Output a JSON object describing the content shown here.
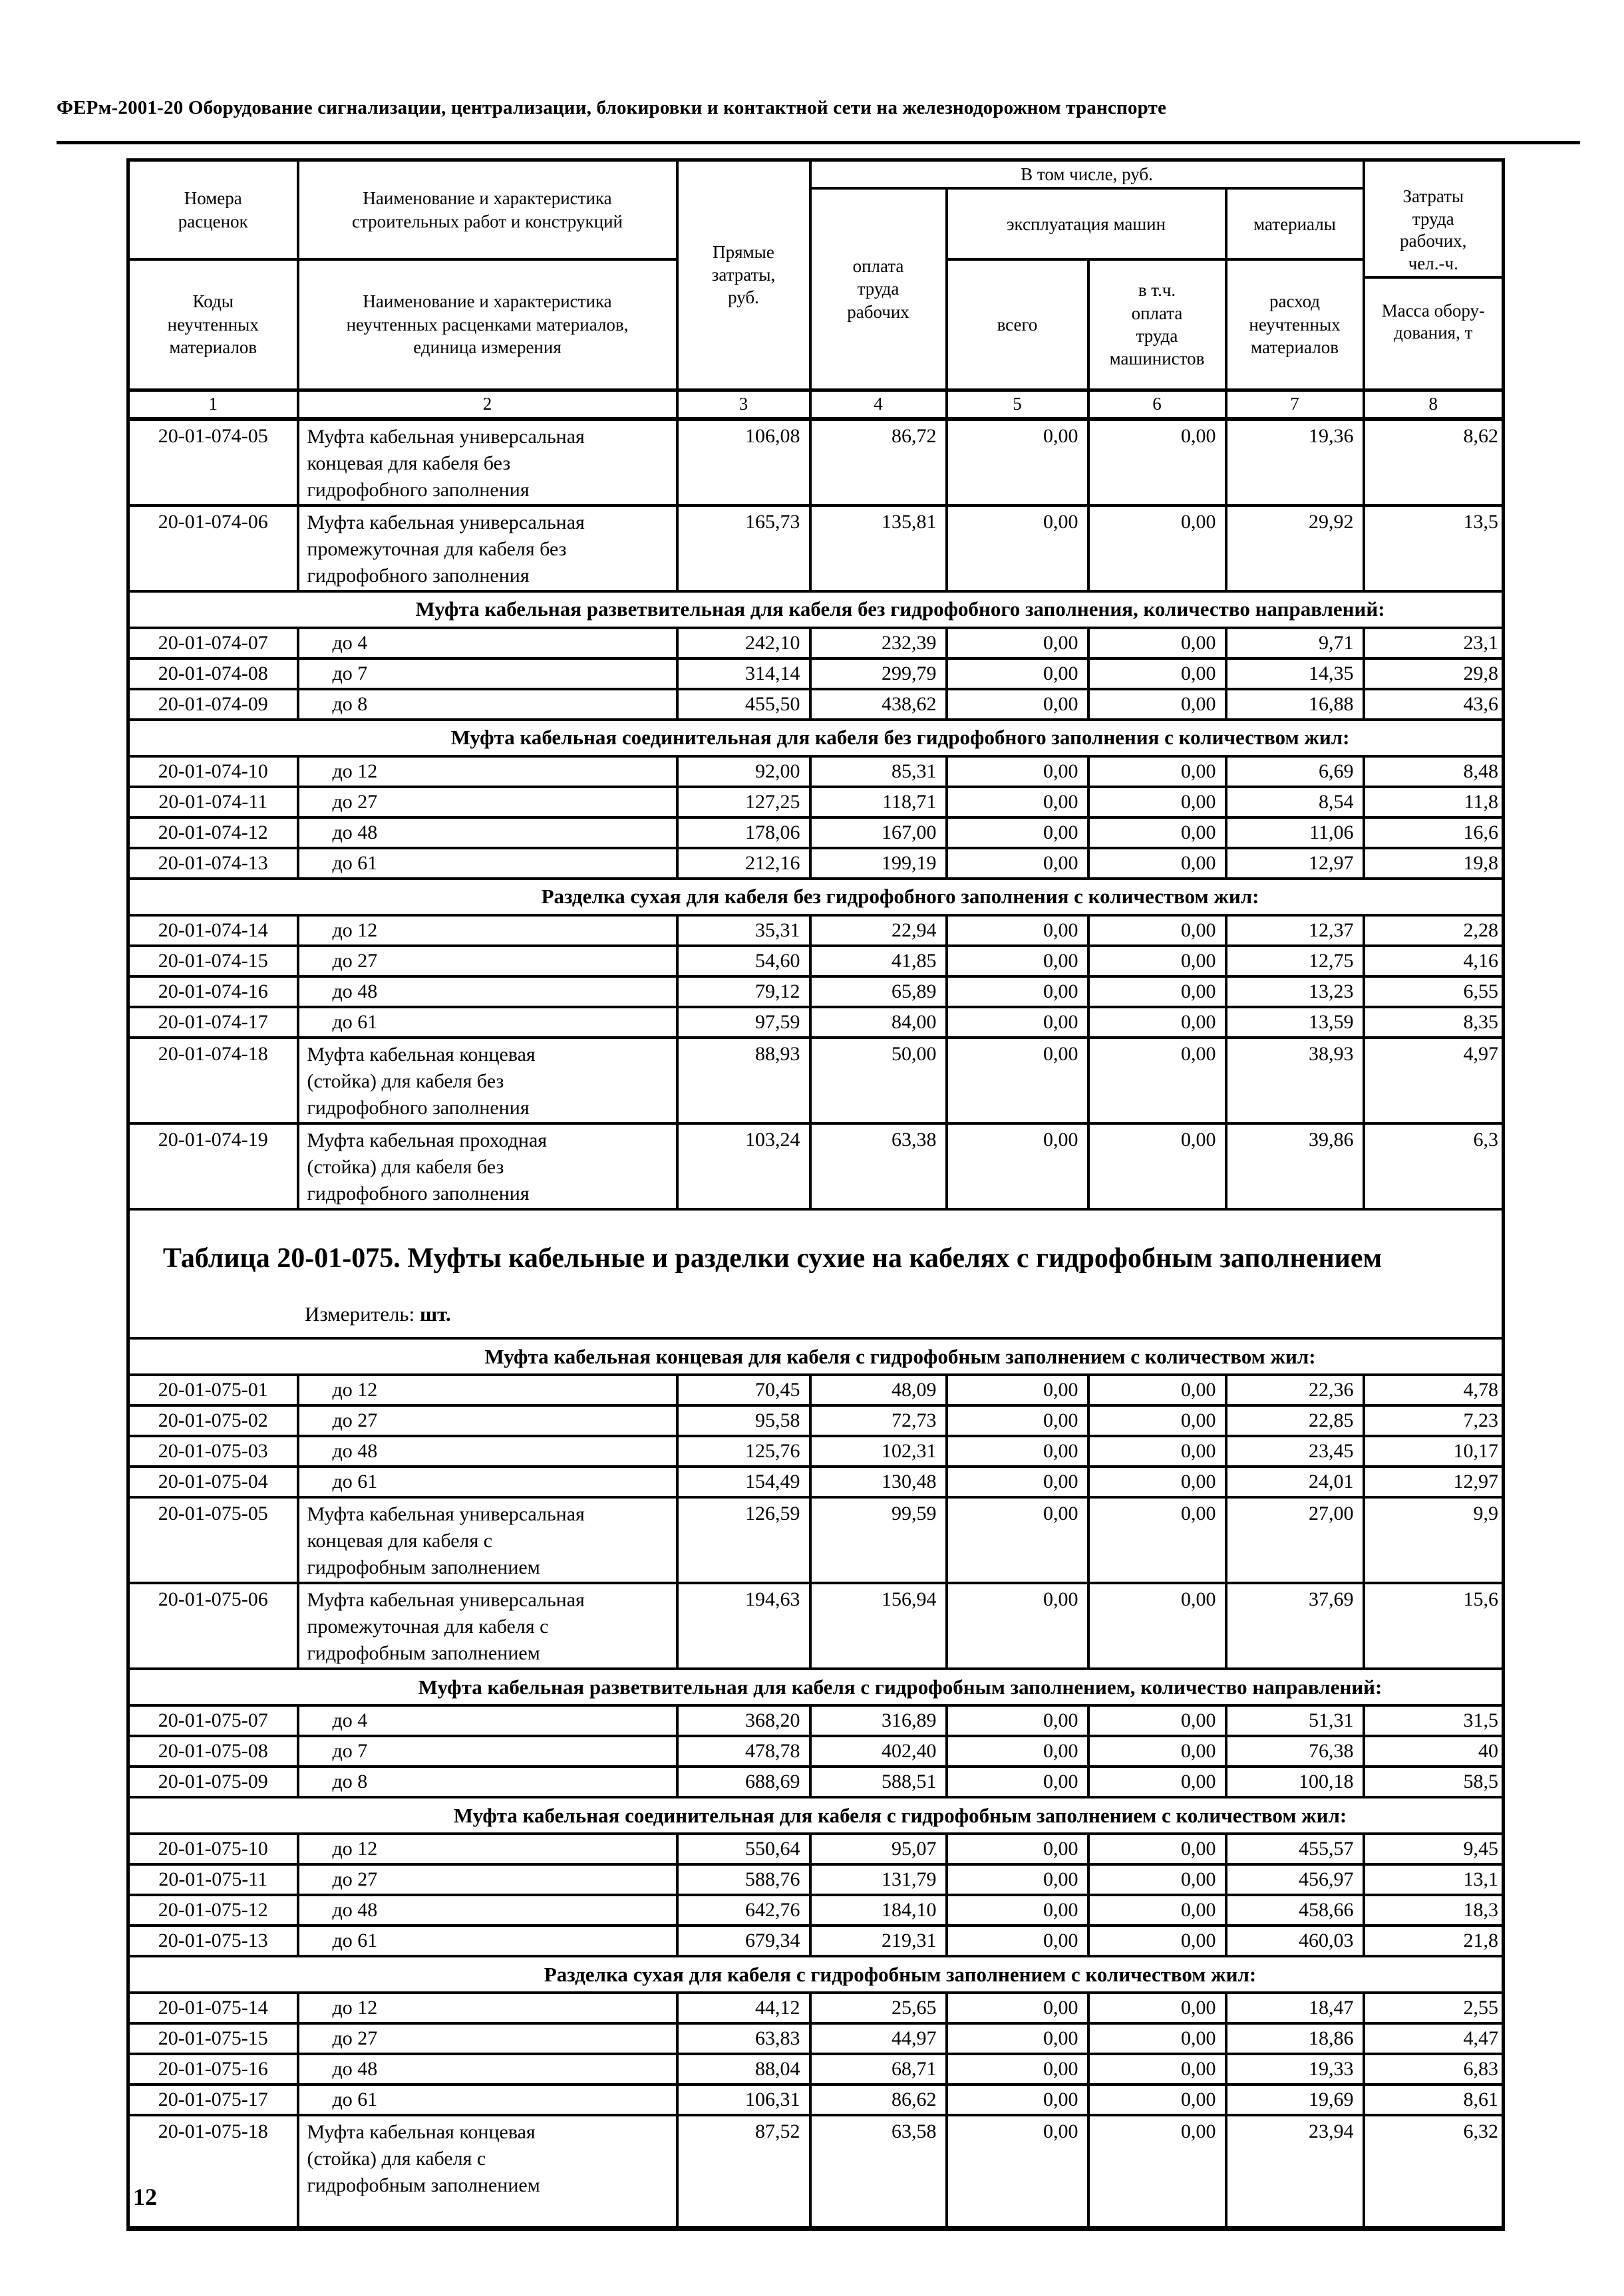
{
  "page": {
    "header_title": "ФЕРм-2001-20 Оборудование сигнализации, централизации, блокировки и контактной сети на железнодорожном транспорте",
    "page_number": "12"
  },
  "table_header": {
    "rate_numbers": "Номера\nрасценок",
    "work_name": "Наименование и характеристика\nстроительных работ и конструкций",
    "material_codes": "Коды\nнеучтенных\nматериалов",
    "material_name": "Наименование и характеристика\nнеучтенных расценками материалов,\nединица измерения",
    "direct_costs": "Прямые\nзатраты,\nруб.",
    "including": "В том числе, руб.",
    "workers_pay": "оплата\nтруда\nрабочих",
    "machines": "эксплуатация машин",
    "machines_total": "всего",
    "machinists_pay": "в т.ч.\nоплата\nтруда\nмашинистов",
    "materials": "материалы",
    "materials_expense": "расход\nнеучтенных\nматериалов",
    "labor_costs": "Затраты\nтруда\nрабочих,\nчел.-ч.",
    "equipment_mass": "Масса обору-\nдования, т",
    "column_numbers": [
      "1",
      "2",
      "3",
      "4",
      "5",
      "6",
      "7",
      "8"
    ]
  },
  "table_074": {
    "rows": [
      {
        "type": "item",
        "code": "20-01-074-05",
        "name": "Муфта кабельная универсальная\nконцевая для кабеля без\nгидрофобного заполнения",
        "values": [
          "106,08",
          "86,72",
          "0,00",
          "0,00",
          "19,36",
          "8,62"
        ]
      },
      {
        "type": "item",
        "code": "20-01-074-06",
        "name": "Муфта кабельная универсальная\nпромежуточная для кабеля без\nгидрофобного заполнения",
        "values": [
          "165,73",
          "135,81",
          "0,00",
          "0,00",
          "29,92",
          "13,5"
        ]
      },
      {
        "type": "section",
        "text": "Муфта кабельная разветвительная для кабеля без гидрофобного заполнения, количество направлений:"
      },
      {
        "type": "item",
        "code": "20-01-074-07",
        "name": "до 4",
        "values": [
          "242,10",
          "232,39",
          "0,00",
          "0,00",
          "9,71",
          "23,1"
        ]
      },
      {
        "type": "item",
        "code": "20-01-074-08",
        "name": "до 7",
        "values": [
          "314,14",
          "299,79",
          "0,00",
          "0,00",
          "14,35",
          "29,8"
        ]
      },
      {
        "type": "item",
        "code": "20-01-074-09",
        "name": "до 8",
        "values": [
          "455,50",
          "438,62",
          "0,00",
          "0,00",
          "16,88",
          "43,6"
        ]
      },
      {
        "type": "section",
        "text": "Муфта кабельная соединительная для кабеля без гидрофобного заполнения с количеством жил:"
      },
      {
        "type": "item",
        "code": "20-01-074-10",
        "name": "до 12",
        "values": [
          "92,00",
          "85,31",
          "0,00",
          "0,00",
          "6,69",
          "8,48"
        ]
      },
      {
        "type": "item",
        "code": "20-01-074-11",
        "name": "до 27",
        "values": [
          "127,25",
          "118,71",
          "0,00",
          "0,00",
          "8,54",
          "11,8"
        ]
      },
      {
        "type": "item",
        "code": "20-01-074-12",
        "name": "до 48",
        "values": [
          "178,06",
          "167,00",
          "0,00",
          "0,00",
          "11,06",
          "16,6"
        ]
      },
      {
        "type": "item",
        "code": "20-01-074-13",
        "name": "до 61",
        "values": [
          "212,16",
          "199,19",
          "0,00",
          "0,00",
          "12,97",
          "19,8"
        ]
      },
      {
        "type": "section",
        "text": "Разделка сухая для кабеля без гидрофобного заполнения с количеством жил:"
      },
      {
        "type": "item",
        "code": "20-01-074-14",
        "name": "до 12",
        "values": [
          "35,31",
          "22,94",
          "0,00",
          "0,00",
          "12,37",
          "2,28"
        ]
      },
      {
        "type": "item",
        "code": "20-01-074-15",
        "name": "до 27",
        "values": [
          "54,60",
          "41,85",
          "0,00",
          "0,00",
          "12,75",
          "4,16"
        ]
      },
      {
        "type": "item",
        "code": "20-01-074-16",
        "name": "до 48",
        "values": [
          "79,12",
          "65,89",
          "0,00",
          "0,00",
          "13,23",
          "6,55"
        ]
      },
      {
        "type": "item",
        "code": "20-01-074-17",
        "name": "до 61",
        "values": [
          "97,59",
          "84,00",
          "0,00",
          "0,00",
          "13,59",
          "8,35"
        ]
      },
      {
        "type": "item",
        "code": "20-01-074-18",
        "name": "Муфта кабельная концевая\n(стойка) для кабеля без\nгидрофобного заполнения",
        "values": [
          "88,93",
          "50,00",
          "0,00",
          "0,00",
          "38,93",
          "4,97"
        ]
      },
      {
        "type": "item",
        "code": "20-01-074-19",
        "name": "Муфта кабельная проходная\n(стойка) для кабеля без\nгидрофобного заполнения",
        "values": [
          "103,24",
          "63,38",
          "0,00",
          "0,00",
          "39,86",
          "6,3"
        ]
      }
    ]
  },
  "table_075": {
    "title": "Таблица 20-01-075. Муфты кабельные и разделки сухие на кабелях с гидрофобным заполнением",
    "measurer_label": "Измеритель:",
    "measurer_value": "шт.",
    "rows": [
      {
        "type": "section",
        "text": "Муфта кабельная концевая для кабеля с гидрофобным заполнением с количеством жил:"
      },
      {
        "type": "item",
        "code": "20-01-075-01",
        "name": "до 12",
        "values": [
          "70,45",
          "48,09",
          "0,00",
          "0,00",
          "22,36",
          "4,78"
        ]
      },
      {
        "type": "item",
        "code": "20-01-075-02",
        "name": "до 27",
        "values": [
          "95,58",
          "72,73",
          "0,00",
          "0,00",
          "22,85",
          "7,23"
        ]
      },
      {
        "type": "item",
        "code": "20-01-075-03",
        "name": "до 48",
        "values": [
          "125,76",
          "102,31",
          "0,00",
          "0,00",
          "23,45",
          "10,17"
        ]
      },
      {
        "type": "item",
        "code": "20-01-075-04",
        "name": "до 61",
        "values": [
          "154,49",
          "130,48",
          "0,00",
          "0,00",
          "24,01",
          "12,97"
        ]
      },
      {
        "type": "item",
        "code": "20-01-075-05",
        "name": "Муфта кабельная универсальная\nконцевая для кабеля с\nгидрофобным заполнением",
        "values": [
          "126,59",
          "99,59",
          "0,00",
          "0,00",
          "27,00",
          "9,9"
        ]
      },
      {
        "type": "item",
        "code": "20-01-075-06",
        "name": "Муфта кабельная универсальная\nпромежуточная для кабеля с\nгидрофобным заполнением",
        "values": [
          "194,63",
          "156,94",
          "0,00",
          "0,00",
          "37,69",
          "15,6"
        ]
      },
      {
        "type": "section",
        "text": "Муфта кабельная разветвительная для кабеля с гидрофобным заполнением, количество направлений:"
      },
      {
        "type": "item",
        "code": "20-01-075-07",
        "name": "до 4",
        "values": [
          "368,20",
          "316,89",
          "0,00",
          "0,00",
          "51,31",
          "31,5"
        ]
      },
      {
        "type": "item",
        "code": "20-01-075-08",
        "name": "до 7",
        "values": [
          "478,78",
          "402,40",
          "0,00",
          "0,00",
          "76,38",
          "40"
        ]
      },
      {
        "type": "item",
        "code": "20-01-075-09",
        "name": "до 8",
        "values": [
          "688,69",
          "588,51",
          "0,00",
          "0,00",
          "100,18",
          "58,5"
        ]
      },
      {
        "type": "section",
        "text": "Муфта кабельная соединительная для кабеля с гидрофобным заполнением с количеством жил:"
      },
      {
        "type": "item",
        "code": "20-01-075-10",
        "name": "до 12",
        "values": [
          "550,64",
          "95,07",
          "0,00",
          "0,00",
          "455,57",
          "9,45"
        ]
      },
      {
        "type": "item",
        "code": "20-01-075-11",
        "name": "до 27",
        "values": [
          "588,76",
          "131,79",
          "0,00",
          "0,00",
          "456,97",
          "13,1"
        ]
      },
      {
        "type": "item",
        "code": "20-01-075-12",
        "name": "до 48",
        "values": [
          "642,76",
          "184,10",
          "0,00",
          "0,00",
          "458,66",
          "18,3"
        ]
      },
      {
        "type": "item",
        "code": "20-01-075-13",
        "name": "до 61",
        "values": [
          "679,34",
          "219,31",
          "0,00",
          "0,00",
          "460,03",
          "21,8"
        ]
      },
      {
        "type": "section",
        "text": "Разделка сухая для кабеля с гидрофобным заполнением с количеством жил:"
      },
      {
        "type": "item",
        "code": "20-01-075-14",
        "name": "до 12",
        "values": [
          "44,12",
          "25,65",
          "0,00",
          "0,00",
          "18,47",
          "2,55"
        ]
      },
      {
        "type": "item",
        "code": "20-01-075-15",
        "name": "до 27",
        "values": [
          "63,83",
          "44,97",
          "0,00",
          "0,00",
          "18,86",
          "4,47"
        ]
      },
      {
        "type": "item",
        "code": "20-01-075-16",
        "name": "до 48",
        "values": [
          "88,04",
          "68,71",
          "0,00",
          "0,00",
          "19,33",
          "6,83"
        ]
      },
      {
        "type": "item",
        "code": "20-01-075-17",
        "name": "до 61",
        "values": [
          "106,31",
          "86,62",
          "0,00",
          "0,00",
          "19,69",
          "8,61"
        ]
      },
      {
        "type": "item",
        "code": "20-01-075-18",
        "name": "Муфта кабельная концевая\n(стойка) для кабеля с\nгидрофобным заполнением",
        "values": [
          "87,52",
          "63,58",
          "0,00",
          "0,00",
          "23,94",
          "6,32"
        ]
      }
    ]
  }
}
